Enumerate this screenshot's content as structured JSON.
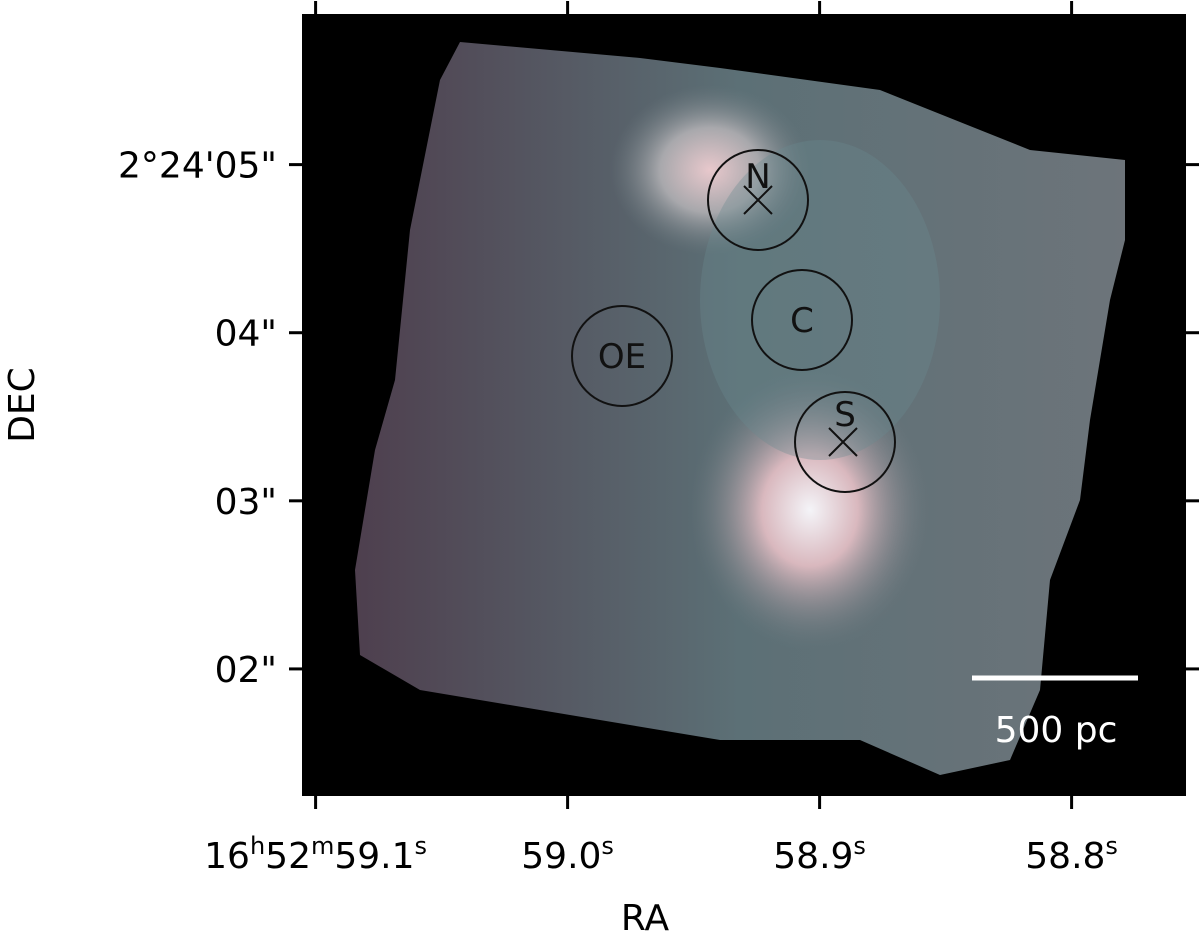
{
  "chart_data": {
    "type": "image",
    "xlabel": "RA",
    "ylabel": "DEC",
    "xlim": [
      59.105,
      58.755
    ],
    "xticks": [
      {
        "value": 59.1,
        "label": "16h52m59.1s"
      },
      {
        "value": 59.0,
        "label": "59.0s"
      },
      {
        "value": 58.9,
        "label": "58.9s"
      },
      {
        "value": 58.8,
        "label": "58.8s"
      }
    ],
    "ylim": [
      1.25,
      5.89
    ],
    "yticks": [
      {
        "value": 5,
        "label": "2°24'05\""
      },
      {
        "value": 4,
        "label": "04\""
      },
      {
        "value": 3,
        "label": "03\""
      },
      {
        "value": 2,
        "label": "02\""
      }
    ],
    "annotations": [
      "N",
      "C",
      "OE",
      "S"
    ],
    "scale_bar": "500 pc"
  }
}
